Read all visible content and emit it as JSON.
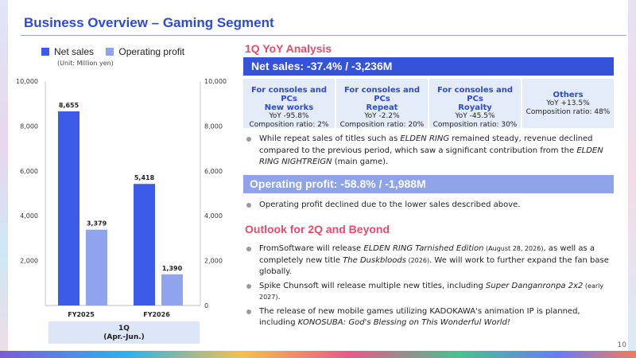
{
  "title": "Business Overview – Gaming Segment",
  "page_number": "10",
  "legend": {
    "net_sales": "Net sales",
    "operating_profit": "Operating profit",
    "unit": "(Unit: Million yen)"
  },
  "colors": {
    "net_sales": "#3a5ce8",
    "operating_profit": "#8fa3ee",
    "accent_pink": "#e84b6a",
    "title_blue": "#2e49d6"
  },
  "period_label": {
    "line1": "1Q",
    "line2": "(Apr.-Jun.)"
  },
  "chart_data": {
    "type": "bar",
    "categories": [
      "FY2025",
      "FY2026"
    ],
    "series": [
      {
        "name": "Net sales",
        "values": [
          8655,
          5418
        ]
      },
      {
        "name": "Operating profit",
        "values": [
          3379,
          1390
        ]
      }
    ],
    "value_labels": [
      [
        "8,655",
        "5,418"
      ],
      [
        "3,379",
        "1,390"
      ]
    ],
    "ylim": [
      0,
      10000
    ],
    "y_ticks_left": [
      "10,000",
      "8,000",
      "6,000",
      "4,000",
      "2,000"
    ],
    "y_ticks_right": [
      "10,000",
      "8,000",
      "6,000",
      "4,000",
      "2,000",
      "0"
    ],
    "y_tick_values_left": [
      10000,
      8000,
      6000,
      4000,
      2000
    ],
    "y_tick_values_right": [
      10000,
      8000,
      6000,
      4000,
      2000,
      0
    ],
    "unit": "(Unit: Million yen)"
  },
  "yoy": {
    "heading": "1Q YoY Analysis",
    "net_sales_bar": "Net sales: -37.4% / -3,236M",
    "categories": [
      {
        "name_line1": "For consoles and PCs",
        "name_line2": "New works",
        "yoy": "YoY -95.8%",
        "ratio": "Composition ratio: 2%"
      },
      {
        "name_line1": "For consoles and PCs",
        "name_line2": "Repeat",
        "yoy": "YoY -2.2%",
        "ratio": "Composition ratio: 20%"
      },
      {
        "name_line1": "For consoles and PCs",
        "name_line2": "Royalty",
        "yoy": "YoY -45.5%",
        "ratio": "Composition ratio: 30%"
      },
      {
        "name_line1": "Others",
        "name_line2": "",
        "yoy": "YoY +13.5%",
        "ratio": "Composition ratio: 48%"
      }
    ],
    "net_sales_bullet": {
      "t1": "While repeat sales of titles such as ",
      "i1": "ELDEN RING",
      "t2": " remained steady, revenue declined compared to the previous period, which saw a significant contribution from the ",
      "i2": "ELDEN RING NIGHTREIGN",
      "t3": " (main game)."
    },
    "op_bar": "Operating profit: -58.8% / -1,988M",
    "op_bullet": "Operating profit declined due to the lower sales described above."
  },
  "outlook": {
    "heading": "Outlook for 2Q and Beyond",
    "b1": {
      "t1": "FromSoftware will release ",
      "i1": "ELDEN RING Tarnished Edition",
      "s1": " (August 28, 2026)",
      "t2": ", as well as a completely new title ",
      "i2": "The Duskbloods",
      "s2": " (2026)",
      "t3": ". We will work to further expand the fan base globally."
    },
    "b2": {
      "t1": "Spike Chunsoft will release multiple new titles, including ",
      "i1": "Super Danganronpa 2x2",
      "s1": " (early 2027)",
      "t2": "."
    },
    "b3": {
      "t1": "The release of new mobile games utilizing KADOKAWA's animation IP is planned, including ",
      "i1": "KONOSUBA: God's Blessing on This Wonderful World!"
    }
  }
}
